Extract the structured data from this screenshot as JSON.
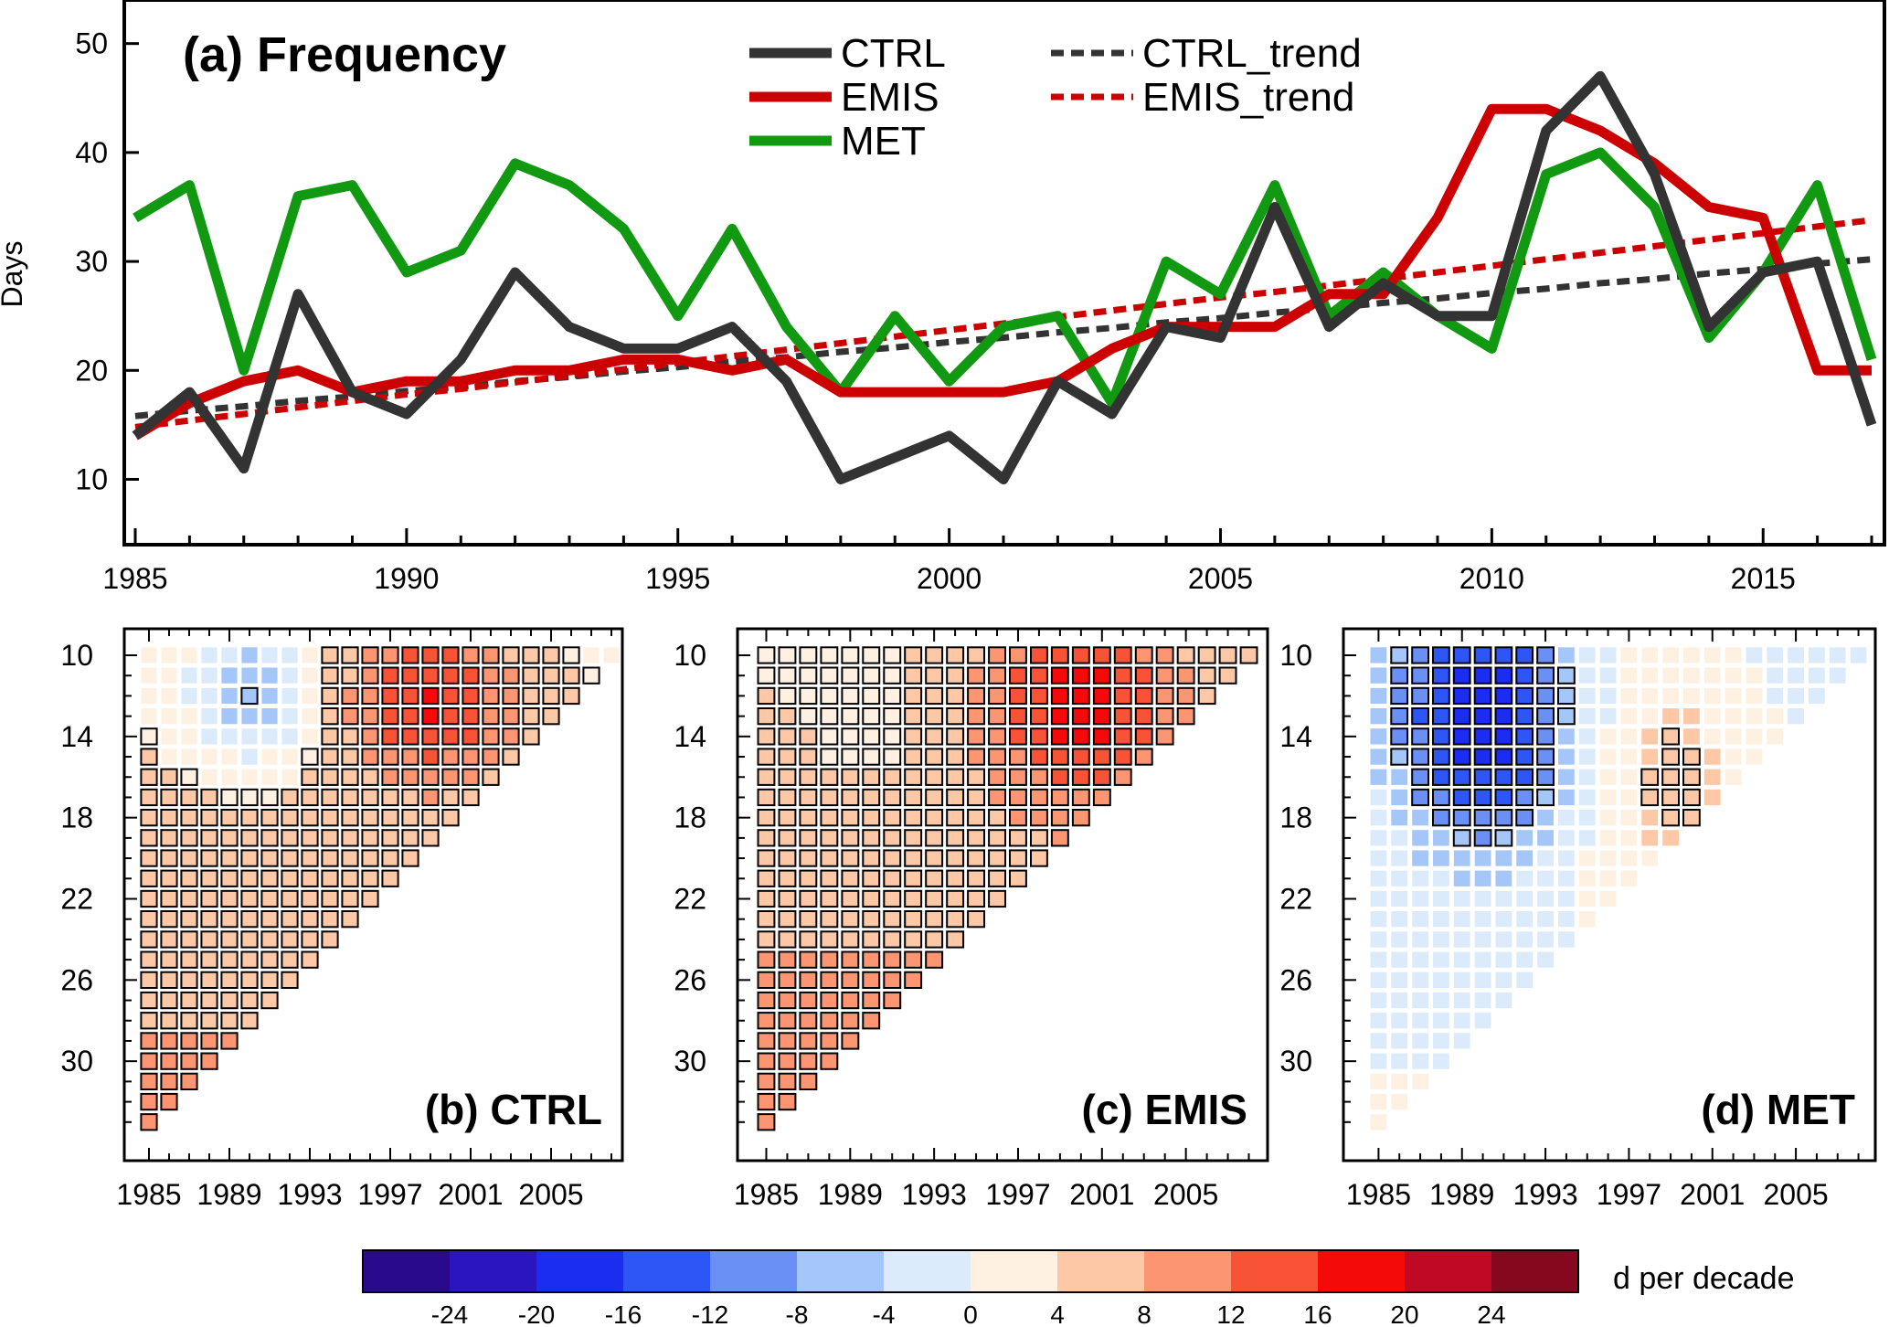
{
  "figure": {
    "panel_a_title": "(a) Frequency",
    "ylabel": "Days",
    "colorbar_label": "d per decade"
  },
  "chart_data": [
    {
      "type": "line",
      "title": "(a) Frequency",
      "xlabel": "",
      "ylabel": "Days",
      "xlim": [
        1985,
        2017
      ],
      "ylim": [
        4,
        54
      ],
      "xticks": [
        1985,
        1990,
        1995,
        2000,
        2005,
        2010,
        2015
      ],
      "yticks": [
        10,
        20,
        30,
        40,
        50
      ],
      "legend_placement": "top-center",
      "x": [
        1985,
        1986,
        1987,
        1988,
        1989,
        1990,
        1991,
        1992,
        1993,
        1994,
        1995,
        1996,
        1997,
        1998,
        1999,
        2000,
        2001,
        2002,
        2003,
        2004,
        2005,
        2006,
        2007,
        2008,
        2009,
        2010,
        2011,
        2012,
        2013,
        2014,
        2015,
        2016,
        2017
      ],
      "series": [
        {
          "name": "CTRL",
          "color": "#333333",
          "style": "solid",
          "values": [
            14,
            18,
            11,
            27,
            18,
            16,
            21,
            29,
            24,
            22,
            22,
            24,
            19,
            10,
            12,
            14,
            10,
            19,
            16,
            24,
            23,
            35,
            24,
            28,
            25,
            25,
            42,
            47,
            38,
            24,
            29,
            30,
            15
          ]
        },
        {
          "name": "EMIS",
          "color": "#cc0000",
          "style": "solid",
          "values": [
            14,
            17,
            19,
            20,
            18,
            19,
            19,
            20,
            20,
            21,
            21,
            20,
            21,
            18,
            18,
            18,
            18,
            19,
            22,
            24,
            24,
            24,
            27,
            27,
            34,
            44,
            44,
            42,
            39,
            35,
            34,
            20,
            20
          ]
        },
        {
          "name": "MET",
          "color": "#119911",
          "style": "solid",
          "values": [
            34,
            37,
            20,
            36,
            37,
            29,
            31,
            39,
            37,
            33,
            25,
            33,
            24,
            18,
            25,
            19,
            24,
            25,
            17,
            30,
            27,
            37,
            25,
            29,
            25,
            22,
            38,
            40,
            35,
            23,
            29,
            37,
            21
          ]
        },
        {
          "name": "CTRL_trend",
          "color": "#333333",
          "style": "dashed",
          "values": [
            15.8,
            16.3,
            16.7,
            17.2,
            17.6,
            18.1,
            18.5,
            19.0,
            19.4,
            19.9,
            20.3,
            20.8,
            21.2,
            21.7,
            22.1,
            22.6,
            23.0,
            23.5,
            23.9,
            24.4,
            24.8,
            25.3,
            25.7,
            26.2,
            26.6,
            27.1,
            27.5,
            28.0,
            28.4,
            28.9,
            29.3,
            29.8,
            30.2
          ]
        },
        {
          "name": "EMIS_trend",
          "color": "#cc0000",
          "style": "dashed",
          "values": [
            14.8,
            15.4,
            16.0,
            16.6,
            17.2,
            17.8,
            18.3,
            18.9,
            19.5,
            20.1,
            20.7,
            21.3,
            21.9,
            22.5,
            23.1,
            23.7,
            24.3,
            24.9,
            25.5,
            26.1,
            26.7,
            27.2,
            27.8,
            28.4,
            29.0,
            29.6,
            30.2,
            30.8,
            31.4,
            32.0,
            32.6,
            33.2,
            33.8
          ]
        }
      ]
    },
    {
      "type": "heatmap",
      "title": "(b) CTRL",
      "x_start": 1985,
      "x_end": 2008,
      "y_start": 10,
      "y_end": 33,
      "xticks": [
        1985,
        1989,
        1993,
        1997,
        2001,
        2005
      ],
      "yticks": [
        10,
        14,
        18,
        22,
        26,
        30
      ],
      "colorbar": "shared",
      "pattern": {
        "base": 3,
        "slope": 0.55,
        "peak": 13,
        "peak_x": 1999,
        "peak_y": 12,
        "peak_sx": 3.0,
        "peak_sy": 3.0,
        "neg": -10,
        "neg_x": 1990,
        "neg_y": 12,
        "neg_sx": 2.2,
        "neg_sy": 2.5,
        "sig_min": 3.5,
        "sig_neg": -6
      }
    },
    {
      "type": "heatmap",
      "title": "(c) EMIS",
      "x_start": 1985,
      "x_end": 2008,
      "y_start": 10,
      "y_end": 33,
      "xticks": [
        1985,
        1989,
        1993,
        1997,
        2001,
        2005
      ],
      "yticks": [
        10,
        14,
        18,
        22,
        26,
        30
      ],
      "colorbar": "shared",
      "pattern": {
        "base": 3.5,
        "slope": 0.6,
        "peak": 14,
        "peak_x": 2000,
        "peak_y": 12,
        "peak_sx": 3.5,
        "peak_sy": 3.5,
        "neg": -2,
        "neg_x": 1990,
        "neg_y": 14,
        "neg_sx": 2.0,
        "neg_sy": 2.0,
        "sig_min": 1.5,
        "sig_neg": -30
      }
    },
    {
      "type": "heatmap",
      "title": "(d) MET",
      "x_start": 1985,
      "x_end": 2008,
      "y_start": 10,
      "y_end": 33,
      "xticks": [
        1985,
        1989,
        1993,
        1997,
        2001,
        2005
      ],
      "yticks": [
        10,
        14,
        18,
        22,
        26,
        30
      ],
      "colorbar": "shared",
      "pattern": {
        "base": -1.5,
        "slope": 0.15,
        "peak": 7,
        "peak_x": 1999,
        "peak_y": 16,
        "peak_sx": 3.0,
        "peak_sy": 5.0,
        "neg": -18,
        "neg_x": 1990,
        "neg_y": 13,
        "neg_sx": 3.0,
        "neg_sy": 4.5,
        "sig_min": 5.0,
        "sig_neg": -7
      }
    }
  ],
  "colorbar": {
    "label": "d per decade",
    "colors": [
      "#2a0a8c",
      "#2a15c0",
      "#1a2df0",
      "#2e55f5",
      "#6a8ff5",
      "#a5c6f8",
      "#dcebfb",
      "#fff1e2",
      "#fcc8a6",
      "#fc9672",
      "#f85336",
      "#f50a0a",
      "#c00a25",
      "#86081e"
    ],
    "tick_labels": [
      "-24",
      "-20",
      "-16",
      "-12",
      "-8",
      "-4",
      "0",
      "4",
      "8",
      "12",
      "16",
      "20",
      "24"
    ]
  }
}
